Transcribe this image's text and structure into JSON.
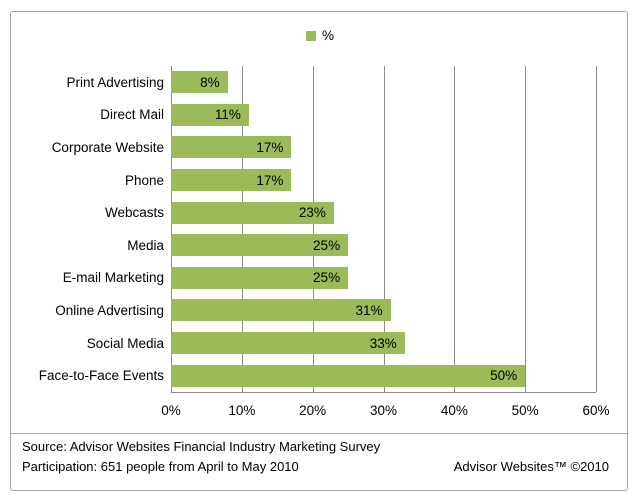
{
  "chart_data": {
    "type": "bar",
    "orientation": "horizontal",
    "legend_label": "%",
    "legend_position": "top",
    "categories": [
      "Print Advertising",
      "Direct Mail",
      "Corporate Website",
      "Phone",
      "Webcasts",
      "Media",
      "E-mail Marketing",
      "Online Advertising",
      "Social Media",
      "Face-to-Face Events"
    ],
    "values": [
      8,
      11,
      17,
      17,
      23,
      25,
      25,
      31,
      33,
      50
    ],
    "value_labels": [
      "8%",
      "11%",
      "17%",
      "17%",
      "23%",
      "25%",
      "25%",
      "31%",
      "33%",
      "50%"
    ],
    "xlim": [
      0,
      60
    ],
    "x_ticks": [
      {
        "value": 0,
        "label": "0%"
      },
      {
        "value": 10,
        "label": "10%"
      },
      {
        "value": 20,
        "label": "20%"
      },
      {
        "value": 30,
        "label": "30%"
      },
      {
        "value": 40,
        "label": "40%"
      },
      {
        "value": 50,
        "label": "50%"
      },
      {
        "value": 60,
        "label": "60%"
      }
    ],
    "grid": true
  },
  "footer": {
    "source": "Source: Advisor Websites Financial Industry Marketing Survey",
    "participation": "Participation: 651 people from April to May 2010",
    "credit": "Advisor Websites™ ©2010"
  },
  "colors": {
    "bar": "#9BBB59",
    "gridline": "#8C8C8C",
    "frame_border": "#A6A6A6",
    "text": "#000000"
  }
}
